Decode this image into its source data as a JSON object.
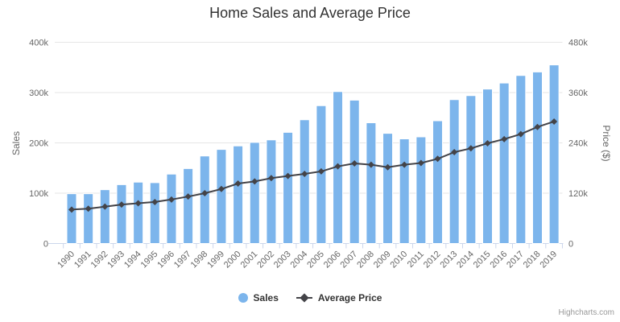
{
  "title": "Home Sales and Average Price",
  "credits": "Highcharts.com",
  "y_axis_left": {
    "title": "Sales",
    "tick_labels": [
      "0",
      "100k",
      "200k",
      "300k",
      "400k"
    ],
    "max": 400000
  },
  "y_axis_right": {
    "title": "Price ($)",
    "tick_labels": [
      "0",
      "120k",
      "240k",
      "360k",
      "480k"
    ],
    "max": 480000
  },
  "colors": {
    "bar": "#7cb5ec",
    "line": "#434348",
    "grid": "#e6e6e6",
    "axis_line": "#ccd6eb",
    "title_text": "#333333",
    "axis_text": "#666666",
    "credits_text": "#999999"
  },
  "chart_data": {
    "type": "combo",
    "title": "Home Sales and Average Price",
    "categories": [
      "1990",
      "1991",
      "1992",
      "1993",
      "1994",
      "1995",
      "1996",
      "1997",
      "1998",
      "1999",
      "2000",
      "2001",
      "2002",
      "2003",
      "2004",
      "2005",
      "2006",
      "2007",
      "2008",
      "2009",
      "2010",
      "2011",
      "2012",
      "2013",
      "2014",
      "2015",
      "2016",
      "2017",
      "2018",
      "2019"
    ],
    "series": [
      {
        "name": "Sales",
        "type": "bar",
        "axis": "left",
        "color": "#7cb5ec",
        "values": [
          99000,
          99000,
          107000,
          117000,
          122000,
          121000,
          138000,
          149000,
          174000,
          187000,
          194000,
          201000,
          206000,
          221000,
          246000,
          274000,
          302000,
          285000,
          240000,
          219000,
          208000,
          212000,
          244000,
          286000,
          294000,
          307000,
          319000,
          334000,
          341000,
          355000
        ]
      },
      {
        "name": "Average Price",
        "type": "line",
        "axis": "right",
        "color": "#434348",
        "values": [
          81000,
          83000,
          88000,
          93000,
          96000,
          99000,
          105000,
          112000,
          120000,
          130000,
          143000,
          148000,
          156000,
          161000,
          166000,
          172000,
          184000,
          191000,
          188000,
          182000,
          188000,
          192000,
          202000,
          218000,
          227000,
          239000,
          249000,
          261000,
          278000,
          291000
        ]
      }
    ],
    "ylabel_left": "Sales",
    "ylabel_right": "Price ($)",
    "ylim_left": [
      0,
      400000
    ],
    "ylim_right": [
      0,
      480000
    ],
    "grid": true,
    "legend_position": "bottom",
    "x_label_rotation": -45
  }
}
